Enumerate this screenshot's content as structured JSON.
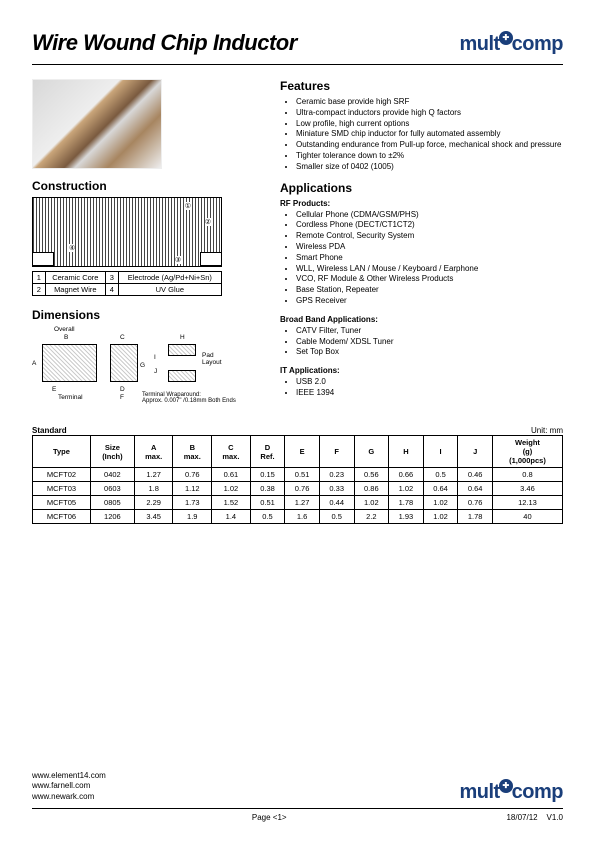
{
  "header": {
    "title": "Wire Wound Chip Inductor",
    "brand": "multicomp"
  },
  "construction": {
    "heading": "Construction",
    "labels": {
      "n1": "①",
      "n2": "②",
      "n3": "③",
      "n4": "④"
    },
    "rows": [
      {
        "n1": "1",
        "t1": "Ceramic Core",
        "n2": "3",
        "t2": "Electrode (Ag/Pd+Ni+Sn)"
      },
      {
        "n1": "2",
        "t1": "Magnet Wire",
        "n2": "4",
        "t2": "UV Glue"
      }
    ]
  },
  "dimensions": {
    "heading": "Dimensions",
    "labels": {
      "overall": "Overall",
      "b": "B",
      "a": "A",
      "e": "E",
      "terminal": "Terminal",
      "c": "C",
      "d": "D",
      "f": "F",
      "g": "G",
      "h": "H",
      "i": "I",
      "j": "J",
      "pad": "Pad\nLayout",
      "wrap": "Terminal Wraparound:\nApprox. 0.007\" /0.18mm Both Ends"
    },
    "standard_label": "Standard",
    "unit_label": "Unit: mm",
    "columns": [
      "Type",
      "Size\n(Inch)",
      "A\nmax.",
      "B\nmax.",
      "C\nmax.",
      "D\nRef.",
      "E",
      "F",
      "G",
      "H",
      "I",
      "J",
      "Weight\n(g)\n(1,000pcs)"
    ],
    "rows": [
      [
        "MCFT02",
        "0402",
        "1.27",
        "0.76",
        "0.61",
        "0.15",
        "0.51",
        "0.23",
        "0.56",
        "0.66",
        "0.5",
        "0.46",
        "0.8"
      ],
      [
        "MCFT03",
        "0603",
        "1.8",
        "1.12",
        "1.02",
        "0.38",
        "0.76",
        "0.33",
        "0.86",
        "1.02",
        "0.64",
        "0.64",
        "3.46"
      ],
      [
        "MCFT05",
        "0805",
        "2.29",
        "1.73",
        "1.52",
        "0.51",
        "1.27",
        "0.44",
        "1.02",
        "1.78",
        "1.02",
        "0.76",
        "12.13"
      ],
      [
        "MCFT06",
        "1206",
        "3.45",
        "1.9",
        "1.4",
        "0.5",
        "1.6",
        "0.5",
        "2.2",
        "1.93",
        "1.02",
        "1.78",
        "40"
      ]
    ]
  },
  "features": {
    "heading": "Features",
    "items": [
      "Ceramic base provide high SRF",
      "Ultra-compact inductors provide high Q factors",
      "Low profile, high current options",
      "Miniature SMD chip inductor for fully automated assembly",
      "Outstanding endurance from Pull-up force, mechanical shock and pressure",
      "Tighter tolerance down to ±2%",
      "Smaller size of 0402 (1005)"
    ]
  },
  "applications": {
    "heading": "Applications",
    "groups": [
      {
        "title": "RF Products:",
        "items": [
          "Cellular Phone (CDMA/GSM/PHS)",
          "Cordless Phone (DECT/CT1CT2)",
          "Remote Control, Security System",
          "Wireless PDA",
          "Smart Phone",
          "WLL, Wireless LAN / Mouse / Keyboard / Earphone",
          "VCO, RF Module & Other Wireless Products",
          "Base Station, Repeater",
          "GPS Receiver"
        ]
      },
      {
        "title": "Broad Band Applications:",
        "items": [
          "CATV Filter, Tuner",
          "Cable Modem/ XDSL Tuner",
          "Set Top Box"
        ]
      },
      {
        "title": "IT Applications:",
        "items": [
          "USB 2.0",
          "IEEE 1394"
        ]
      }
    ]
  },
  "footer": {
    "links": [
      "www.element14.com",
      "www.farnell.com",
      "www.newark.com"
    ],
    "page": "Page <1>",
    "date": "18/07/12",
    "version": "V1.0"
  },
  "colors": {
    "brand": "#1a3e7a"
  }
}
